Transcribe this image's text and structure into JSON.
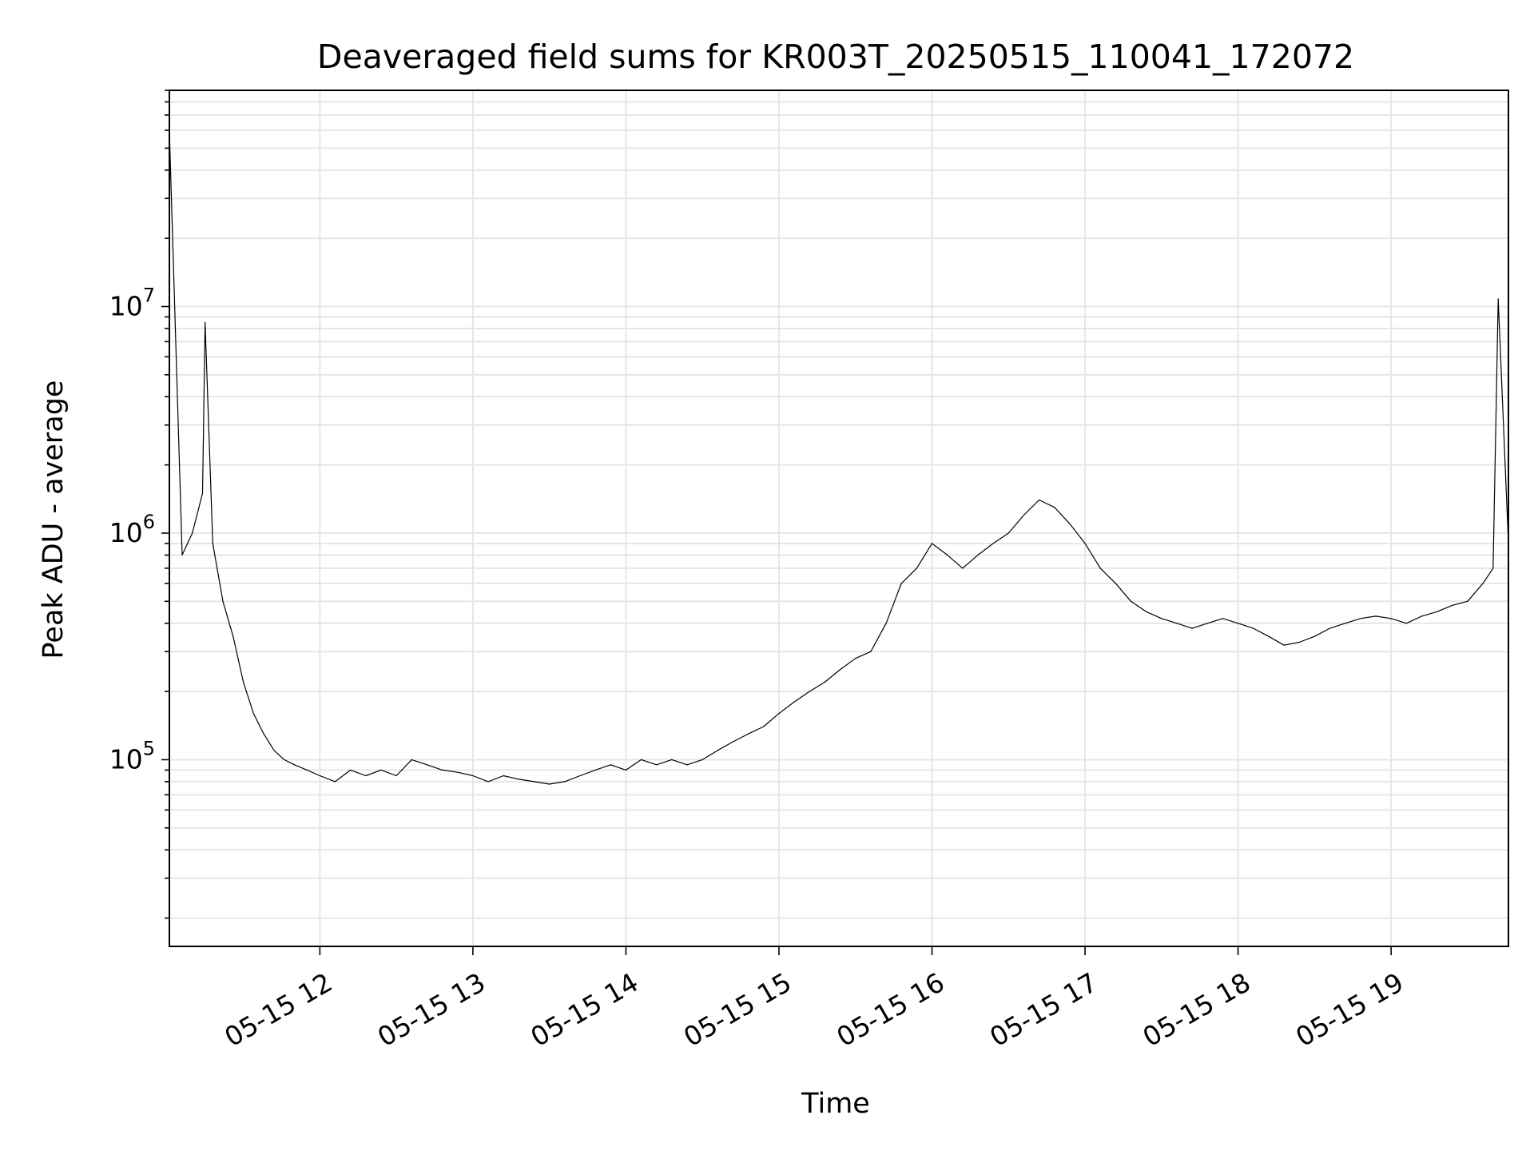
{
  "chart_data": {
    "type": "line",
    "title": "Deaveraged field sums for KR003T_20250515_110041_172072",
    "xlabel": "Time",
    "ylabel": "Peak ADU - average",
    "x_ticks": [
      "05-15 12",
      "05-15 13",
      "05-15 14",
      "05-15 15",
      "05-15 16",
      "05-15 17",
      "05-15 18",
      "05-15 19"
    ],
    "y_ticks": [
      {
        "base": "10",
        "exp": "5",
        "value": 100000
      },
      {
        "base": "10",
        "exp": "6",
        "value": 1000000
      },
      {
        "base": "10",
        "exp": "7",
        "value": 10000000
      }
    ],
    "xlim": [
      "2025-05-15 11:01",
      "2025-05-15 19:46"
    ],
    "ylim": [
      15000,
      90000000
    ],
    "y_scale": "log",
    "grid": true,
    "line_color": "#000000",
    "grid_color": "#e6e6e6",
    "series": [
      {
        "x": [
          "2025-05-15 11:01",
          "2025-05-15 11:06",
          "2025-05-15 11:10",
          "2025-05-15 11:14",
          "2025-05-15 11:15",
          "2025-05-15 11:18",
          "2025-05-15 11:22",
          "2025-05-15 11:26",
          "2025-05-15 11:30",
          "2025-05-15 11:34",
          "2025-05-15 11:38",
          "2025-05-15 11:42",
          "2025-05-15 11:46",
          "2025-05-15 11:50",
          "2025-05-15 11:55",
          "2025-05-15 12:00",
          "2025-05-15 12:06",
          "2025-05-15 12:12",
          "2025-05-15 12:18",
          "2025-05-15 12:24",
          "2025-05-15 12:30",
          "2025-05-15 12:36",
          "2025-05-15 12:42",
          "2025-05-15 12:48",
          "2025-05-15 12:54",
          "2025-05-15 13:00",
          "2025-05-15 13:06",
          "2025-05-15 13:12",
          "2025-05-15 13:18",
          "2025-05-15 13:24",
          "2025-05-15 13:30",
          "2025-05-15 13:36",
          "2025-05-15 13:42",
          "2025-05-15 13:48",
          "2025-05-15 13:54",
          "2025-05-15 14:00",
          "2025-05-15 14:06",
          "2025-05-15 14:12",
          "2025-05-15 14:18",
          "2025-05-15 14:24",
          "2025-05-15 14:30",
          "2025-05-15 14:36",
          "2025-05-15 14:42",
          "2025-05-15 14:48",
          "2025-05-15 14:54",
          "2025-05-15 15:00",
          "2025-05-15 15:06",
          "2025-05-15 15:12",
          "2025-05-15 15:18",
          "2025-05-15 15:24",
          "2025-05-15 15:30",
          "2025-05-15 15:36",
          "2025-05-15 15:42",
          "2025-05-15 15:48",
          "2025-05-15 15:54",
          "2025-05-15 16:00",
          "2025-05-15 16:06",
          "2025-05-15 16:12",
          "2025-05-15 16:18",
          "2025-05-15 16:24",
          "2025-05-15 16:30",
          "2025-05-15 16:36",
          "2025-05-15 16:42",
          "2025-05-15 16:48",
          "2025-05-15 16:54",
          "2025-05-15 17:00",
          "2025-05-15 17:06",
          "2025-05-15 17:12",
          "2025-05-15 17:18",
          "2025-05-15 17:24",
          "2025-05-15 17:30",
          "2025-05-15 17:36",
          "2025-05-15 17:42",
          "2025-05-15 17:48",
          "2025-05-15 17:54",
          "2025-05-15 18:00",
          "2025-05-15 18:06",
          "2025-05-15 18:12",
          "2025-05-15 18:18",
          "2025-05-15 18:24",
          "2025-05-15 18:30",
          "2025-05-15 18:36",
          "2025-05-15 18:42",
          "2025-05-15 18:48",
          "2025-05-15 18:54",
          "2025-05-15 19:00",
          "2025-05-15 19:06",
          "2025-05-15 19:12",
          "2025-05-15 19:18",
          "2025-05-15 19:24",
          "2025-05-15 19:30",
          "2025-05-15 19:36",
          "2025-05-15 19:40",
          "2025-05-15 19:42",
          "2025-05-15 19:46"
        ],
        "values": [
          60000000,
          800000,
          1000000,
          1500000,
          8500000,
          900000,
          500000,
          350000,
          220000,
          160000,
          130000,
          110000,
          100000,
          95000,
          90000,
          85000,
          80000,
          90000,
          85000,
          90000,
          85000,
          100000,
          95000,
          90000,
          88000,
          85000,
          80000,
          85000,
          82000,
          80000,
          78000,
          80000,
          85000,
          90000,
          95000,
          90000,
          100000,
          95000,
          100000,
          95000,
          100000,
          110000,
          120000,
          130000,
          140000,
          160000,
          180000,
          200000,
          220000,
          250000,
          280000,
          300000,
          400000,
          600000,
          700000,
          900000,
          800000,
          700000,
          800000,
          900000,
          1000000,
          1200000,
          1400000,
          1300000,
          1100000,
          900000,
          700000,
          600000,
          500000,
          450000,
          420000,
          400000,
          380000,
          400000,
          420000,
          400000,
          380000,
          350000,
          320000,
          330000,
          350000,
          380000,
          400000,
          420000,
          430000,
          420000,
          400000,
          430000,
          450000,
          480000,
          500000,
          600000,
          700000,
          10800000,
          900000
        ]
      }
    ],
    "annotations": []
  }
}
